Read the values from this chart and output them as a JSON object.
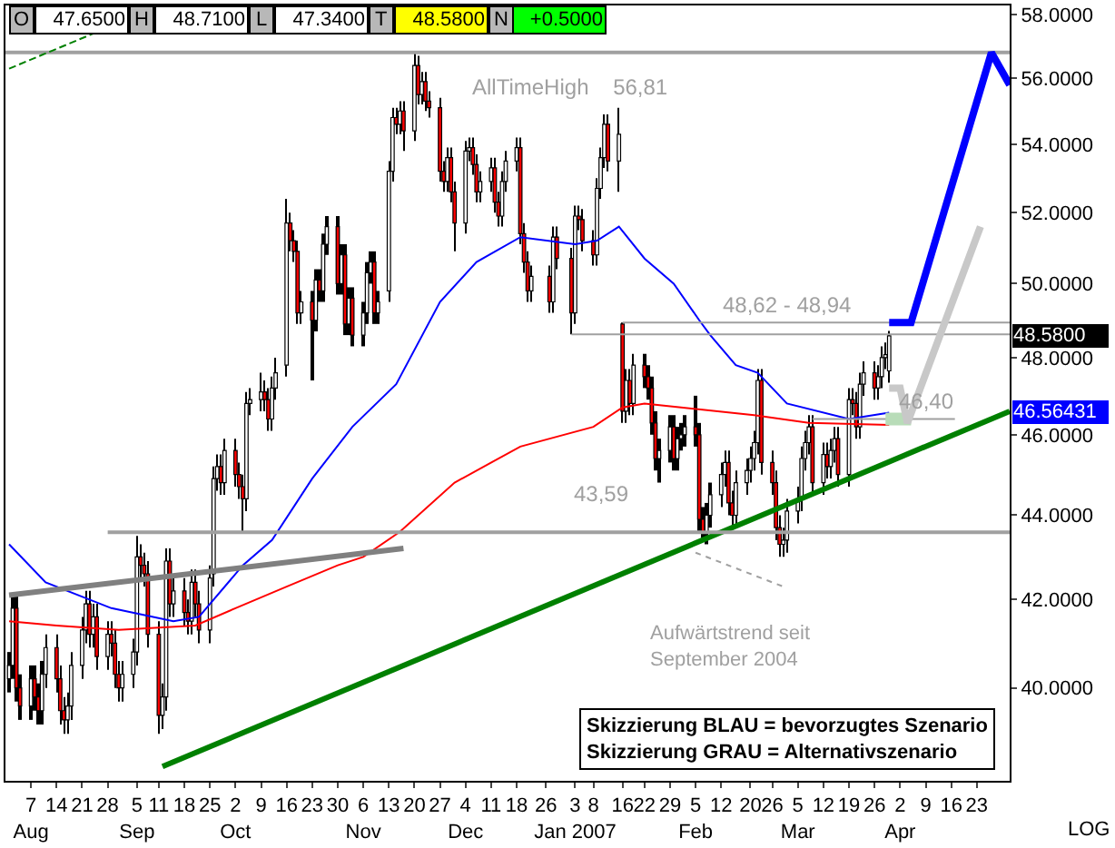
{
  "chart_data": {
    "type": "candlestick",
    "log": true,
    "x": [
      "2006-08-01",
      "2006-08-02",
      "2006-08-03",
      "2006-08-04",
      "2006-08-07",
      "2006-08-08",
      "2006-08-09",
      "2006-08-10",
      "2006-08-11",
      "2006-08-14",
      "2006-08-15",
      "2006-08-16",
      "2006-08-17",
      "2006-08-18",
      "2006-08-21",
      "2006-08-22",
      "2006-08-23",
      "2006-08-24",
      "2006-08-25",
      "2006-08-28",
      "2006-08-29",
      "2006-08-30",
      "2006-08-31",
      "2006-09-01",
      "2006-09-04",
      "2006-09-05",
      "2006-09-06",
      "2006-09-07",
      "2006-09-08",
      "2006-09-11",
      "2006-09-12",
      "2006-09-13",
      "2006-09-14",
      "2006-09-15",
      "2006-09-18",
      "2006-09-19",
      "2006-09-20",
      "2006-09-21",
      "2006-09-22",
      "2006-09-25",
      "2006-09-26",
      "2006-09-27",
      "2006-09-28",
      "2006-09-29",
      "2006-10-02",
      "2006-10-03",
      "2006-10-04",
      "2006-10-05",
      "2006-10-06",
      "2006-10-09",
      "2006-10-10",
      "2006-10-11",
      "2006-10-12",
      "2006-10-13",
      "2006-10-16",
      "2006-10-17",
      "2006-10-18",
      "2006-10-19",
      "2006-10-20",
      "2006-10-23",
      "2006-10-24",
      "2006-10-25",
      "2006-10-26",
      "2006-10-27",
      "2006-10-30",
      "2006-10-31",
      "2006-11-01",
      "2006-11-02",
      "2006-11-03",
      "2006-11-06",
      "2006-11-07",
      "2006-11-08",
      "2006-11-09",
      "2006-11-10",
      "2006-11-13",
      "2006-11-14",
      "2006-11-15",
      "2006-11-16",
      "2006-11-17",
      "2006-11-20",
      "2006-11-21",
      "2006-11-22",
      "2006-11-23",
      "2006-11-24",
      "2006-11-27",
      "2006-11-28",
      "2006-11-29",
      "2006-11-30",
      "2006-12-01",
      "2006-12-04",
      "2006-12-05",
      "2006-12-06",
      "2006-12-07",
      "2006-12-08",
      "2006-12-11",
      "2006-12-12",
      "2006-12-13",
      "2006-12-14",
      "2006-12-15",
      "2006-12-18",
      "2006-12-19",
      "2006-12-20",
      "2006-12-21",
      "2006-12-22",
      "2006-12-27",
      "2006-12-28",
      "2006-12-29",
      "2007-01-02",
      "2007-01-03",
      "2007-01-04",
      "2007-01-05",
      "2007-01-08",
      "2007-01-09",
      "2007-01-10",
      "2007-01-11",
      "2007-01-12",
      "2007-01-15",
      "2007-01-16",
      "2007-01-17",
      "2007-01-18",
      "2007-01-19",
      "2007-01-22",
      "2007-01-23",
      "2007-01-24",
      "2007-01-25",
      "2007-01-26",
      "2007-01-29",
      "2007-01-30",
      "2007-01-31",
      "2007-02-01",
      "2007-02-02",
      "2007-02-05",
      "2007-02-06",
      "2007-02-07",
      "2007-02-08",
      "2007-02-09",
      "2007-02-12",
      "2007-02-13",
      "2007-02-14",
      "2007-02-15",
      "2007-02-16",
      "2007-02-19",
      "2007-02-20",
      "2007-02-21",
      "2007-02-22",
      "2007-02-23",
      "2007-02-26",
      "2007-02-27",
      "2007-02-28",
      "2007-03-01",
      "2007-03-02",
      "2007-03-05",
      "2007-03-06",
      "2007-03-07",
      "2007-03-08",
      "2007-03-09",
      "2007-03-12",
      "2007-03-13",
      "2007-03-14",
      "2007-03-15",
      "2007-03-16",
      "2007-03-19",
      "2007-03-20",
      "2007-03-21",
      "2007-03-22",
      "2007-03-23",
      "2007-03-26",
      "2007-03-27",
      "2007-03-28",
      "2007-03-29",
      "2007-03-30"
    ],
    "ohlc": [
      [
        40.2,
        40.8,
        39.9,
        40.5
      ],
      [
        40.5,
        42.1,
        40.2,
        41.8
      ],
      [
        41.8,
        42.1,
        39.7,
        40.0
      ],
      [
        40.0,
        40.3,
        39.3,
        39.6
      ],
      [
        39.6,
        40.5,
        39.3,
        40.2
      ],
      [
        40.2,
        40.5,
        39.5,
        39.8
      ],
      [
        39.8,
        40.1,
        39.2,
        39.5
      ],
      [
        39.5,
        40.6,
        39.2,
        40.3
      ],
      [
        40.3,
        41.2,
        40.0,
        40.9
      ],
      [
        40.9,
        41.2,
        39.9,
        40.2
      ],
      [
        40.2,
        40.5,
        39.2,
        39.5
      ],
      [
        39.5,
        39.8,
        39.0,
        39.3
      ],
      [
        39.3,
        39.9,
        39.0,
        39.6
      ],
      [
        39.6,
        40.8,
        39.3,
        40.5
      ],
      [
        40.5,
        41.6,
        40.2,
        41.3
      ],
      [
        41.3,
        42.2,
        41.0,
        41.9
      ],
      [
        41.9,
        42.2,
        40.9,
        41.2
      ],
      [
        41.2,
        41.9,
        40.9,
        41.6
      ],
      [
        41.6,
        41.9,
        40.4,
        40.7
      ],
      [
        40.7,
        41.5,
        40.4,
        41.2
      ],
      [
        41.2,
        41.5,
        40.7,
        41.0
      ],
      [
        41.0,
        41.3,
        40.0,
        40.3
      ],
      [
        40.3,
        40.6,
        39.7,
        40.0
      ],
      [
        40.0,
        40.6,
        39.7,
        40.3
      ],
      [
        40.3,
        41.1,
        40.0,
        40.8
      ],
      [
        40.8,
        43.5,
        40.5,
        43.0
      ],
      [
        43.0,
        43.3,
        42.5,
        42.8
      ],
      [
        42.8,
        43.1,
        42.3,
        42.6
      ],
      [
        42.6,
        42.9,
        40.9,
        41.2
      ],
      [
        41.2,
        41.5,
        39.0,
        39.4
      ],
      [
        39.4,
        40.1,
        39.1,
        39.8
      ],
      [
        39.8,
        43.2,
        39.5,
        42.9
      ],
      [
        42.9,
        43.2,
        41.6,
        41.9
      ],
      [
        41.9,
        42.5,
        41.6,
        42.2
      ],
      [
        42.2,
        42.5,
        41.4,
        41.7
      ],
      [
        41.7,
        42.0,
        41.2,
        41.5
      ],
      [
        41.5,
        42.7,
        41.2,
        42.4
      ],
      [
        42.4,
        42.7,
        41.6,
        41.9
      ],
      [
        41.9,
        42.2,
        41.0,
        41.3
      ],
      [
        41.3,
        42.8,
        41.0,
        42.5
      ],
      [
        42.6,
        45.2,
        42.3,
        44.9
      ],
      [
        44.9,
        45.5,
        44.6,
        45.2
      ],
      [
        45.2,
        45.5,
        44.5,
        44.8
      ],
      [
        44.8,
        45.9,
        44.5,
        45.6
      ],
      [
        45.6,
        45.9,
        44.7,
        45.0
      ],
      [
        45.0,
        45.3,
        44.4,
        44.7
      ],
      [
        44.7,
        45.0,
        43.6,
        44.4
      ],
      [
        44.4,
        47.1,
        44.1,
        46.8
      ],
      [
        46.8,
        47.2,
        46.5,
        46.9
      ],
      [
        46.9,
        47.6,
        46.6,
        47.1
      ],
      [
        47.1,
        47.4,
        46.6,
        46.9
      ],
      [
        46.9,
        47.2,
        46.1,
        46.4
      ],
      [
        46.4,
        47.5,
        46.1,
        47.2
      ],
      [
        47.2,
        48.0,
        46.9,
        47.6
      ],
      [
        47.8,
        52.4,
        47.5,
        51.7
      ],
      [
        51.7,
        52.0,
        50.9,
        51.2
      ],
      [
        51.2,
        51.5,
        50.6,
        50.9
      ],
      [
        50.9,
        51.2,
        48.9,
        49.2
      ],
      [
        49.2,
        49.8,
        48.9,
        49.5
      ],
      [
        49.5,
        49.8,
        47.4,
        49.0
      ],
      [
        49.0,
        50.4,
        48.7,
        50.1
      ],
      [
        50.1,
        50.4,
        49.5,
        49.8
      ],
      [
        49.8,
        51.4,
        49.5,
        51.1
      ],
      [
        51.1,
        51.9,
        50.8,
        51.6
      ],
      [
        51.6,
        51.9,
        49.7,
        50.0
      ],
      [
        50.0,
        51.1,
        49.7,
        50.8
      ],
      [
        50.8,
        51.1,
        48.6,
        48.9
      ],
      [
        48.9,
        49.9,
        48.6,
        49.6
      ],
      [
        49.6,
        49.9,
        48.3,
        48.6
      ],
      [
        48.6,
        49.5,
        48.3,
        49.2
      ],
      [
        49.2,
        50.6,
        48.9,
        50.3
      ],
      [
        50.3,
        50.9,
        50.0,
        50.6
      ],
      [
        50.6,
        50.9,
        48.9,
        49.2
      ],
      [
        49.2,
        49.8,
        48.9,
        49.5
      ],
      [
        49.8,
        53.5,
        49.5,
        53.2
      ],
      [
        53.2,
        55.1,
        52.9,
        54.8
      ],
      [
        54.8,
        55.1,
        54.3,
        54.6
      ],
      [
        54.6,
        55.3,
        54.3,
        55.0
      ],
      [
        55.0,
        55.3,
        53.8,
        54.4
      ],
      [
        54.4,
        56.81,
        54.1,
        56.4
      ],
      [
        56.4,
        56.7,
        55.2,
        55.5
      ],
      [
        55.5,
        56.2,
        55.2,
        55.9
      ],
      [
        55.9,
        56.2,
        55.0,
        55.3
      ],
      [
        55.3,
        55.6,
        54.8,
        55.1
      ],
      [
        55.1,
        55.4,
        52.9,
        53.2
      ],
      [
        53.2,
        53.5,
        52.6,
        52.9
      ],
      [
        52.9,
        53.9,
        52.6,
        53.6
      ],
      [
        53.6,
        53.9,
        52.3,
        52.6
      ],
      [
        52.6,
        52.9,
        50.9,
        51.7
      ],
      [
        51.7,
        54.1,
        51.4,
        53.8
      ],
      [
        53.8,
        54.2,
        53.5,
        53.9
      ],
      [
        53.9,
        54.2,
        53.1,
        53.4
      ],
      [
        53.4,
        53.7,
        52.3,
        52.6
      ],
      [
        52.6,
        53.2,
        52.3,
        52.9
      ],
      [
        52.9,
        53.6,
        52.6,
        53.3
      ],
      [
        53.3,
        53.6,
        52.0,
        52.3
      ],
      [
        52.3,
        52.6,
        51.6,
        51.9
      ],
      [
        51.9,
        53.2,
        51.6,
        52.9
      ],
      [
        52.9,
        53.8,
        52.6,
        53.5
      ],
      [
        53.5,
        54.2,
        53.2,
        53.9
      ],
      [
        53.9,
        54.2,
        51.1,
        51.4
      ],
      [
        51.4,
        51.7,
        50.3,
        50.6
      ],
      [
        50.6,
        50.9,
        49.5,
        49.8
      ],
      [
        49.8,
        50.5,
        49.5,
        50.2
      ],
      [
        50.2,
        50.5,
        49.2,
        49.5
      ],
      [
        49.5,
        51.6,
        49.2,
        51.3
      ],
      [
        51.3,
        51.6,
        50.4,
        50.7
      ],
      [
        50.7,
        51.0,
        48.62,
        49.2
      ],
      [
        49.2,
        52.2,
        48.9,
        51.9
      ],
      [
        51.9,
        52.2,
        51.5,
        51.8
      ],
      [
        51.8,
        52.1,
        50.9,
        51.2
      ],
      [
        51.2,
        51.5,
        50.5,
        50.8
      ],
      [
        50.8,
        53.0,
        50.5,
        52.7
      ],
      [
        52.7,
        53.9,
        52.4,
        53.6
      ],
      [
        53.6,
        54.9,
        53.3,
        54.6
      ],
      [
        54.6,
        54.9,
        53.2,
        53.5
      ],
      [
        53.5,
        55.1,
        52.6,
        54.3
      ],
      [
        48.9,
        48.94,
        46.3,
        46.6
      ],
      [
        46.6,
        47.7,
        46.3,
        47.4
      ],
      [
        47.4,
        47.7,
        46.5,
        46.8
      ],
      [
        46.8,
        48.1,
        46.5,
        47.8
      ],
      [
        47.8,
        48.1,
        47.2,
        47.5
      ],
      [
        47.5,
        47.8,
        46.9,
        47.2
      ],
      [
        47.2,
        47.5,
        46.0,
        46.3
      ],
      [
        46.3,
        46.6,
        45.1,
        45.4
      ],
      [
        45.4,
        45.9,
        44.8,
        45.6
      ],
      [
        45.6,
        46.5,
        45.3,
        46.2
      ],
      [
        46.2,
        46.5,
        45.1,
        45.4
      ],
      [
        45.4,
        46.2,
        45.1,
        45.9
      ],
      [
        45.9,
        46.3,
        45.6,
        46.0
      ],
      [
        46.0,
        46.5,
        45.7,
        46.2
      ],
      [
        46.2,
        47.0,
        45.7,
        46.0
      ],
      [
        46.0,
        46.3,
        43.6,
        43.9
      ],
      [
        43.9,
        44.2,
        43.45,
        43.6
      ],
      [
        43.6,
        44.3,
        43.3,
        44.0
      ],
      [
        44.0,
        44.8,
        43.7,
        44.5
      ],
      [
        44.5,
        45.3,
        44.2,
        45.0
      ],
      [
        45.0,
        45.6,
        44.7,
        45.3
      ],
      [
        45.3,
        45.6,
        44.0,
        44.3
      ],
      [
        44.3,
        44.6,
        43.7,
        44.0
      ],
      [
        44.0,
        45.1,
        43.7,
        44.8
      ],
      [
        44.8,
        45.4,
        44.5,
        45.1
      ],
      [
        45.1,
        45.7,
        44.8,
        45.4
      ],
      [
        45.4,
        46.1,
        45.1,
        45.8
      ],
      [
        45.8,
        47.7,
        45.5,
        47.4
      ],
      [
        47.4,
        47.7,
        45.0,
        45.3
      ],
      [
        45.3,
        45.6,
        44.5,
        44.8
      ],
      [
        44.8,
        45.1,
        43.4,
        43.7
      ],
      [
        43.7,
        44.0,
        43.0,
        43.3
      ],
      [
        43.3,
        43.7,
        43.0,
        43.4
      ],
      [
        43.4,
        44.4,
        43.1,
        44.1
      ],
      [
        44.1,
        44.7,
        43.8,
        44.4
      ],
      [
        44.4,
        45.7,
        44.1,
        45.4
      ],
      [
        45.4,
        46.1,
        45.1,
        45.8
      ],
      [
        45.8,
        46.5,
        45.5,
        46.2
      ],
      [
        46.2,
        46.5,
        44.5,
        44.8
      ],
      [
        44.8,
        45.8,
        44.5,
        45.5
      ],
      [
        45.5,
        45.8,
        44.9,
        45.2
      ],
      [
        45.2,
        45.9,
        44.9,
        45.6
      ],
      [
        45.6,
        46.2,
        45.3,
        45.9
      ],
      [
        45.9,
        46.2,
        44.7,
        45.0
      ],
      [
        45.0,
        47.2,
        44.7,
        46.9
      ],
      [
        46.9,
        47.2,
        46.5,
        46.8
      ],
      [
        46.8,
        47.1,
        45.9,
        46.2
      ],
      [
        46.2,
        47.6,
        45.9,
        47.3
      ],
      [
        47.3,
        47.9,
        47.0,
        47.6
      ],
      [
        47.6,
        47.9,
        46.9,
        47.2
      ],
      [
        47.2,
        47.8,
        46.9,
        47.5
      ],
      [
        47.5,
        48.3,
        47.2,
        48.0
      ],
      [
        48.0,
        48.4,
        47.7,
        48.08
      ],
      [
        47.65,
        48.71,
        47.34,
        48.58
      ]
    ],
    "series": [
      {
        "type": "line",
        "color": "#0000ff",
        "x": [
          "2006-08-01",
          "2006-08-11",
          "2006-08-29",
          "2006-09-15",
          "2006-09-22",
          "2006-10-04",
          "2006-10-12",
          "2006-10-23",
          "2006-11-03",
          "2006-11-15",
          "2006-11-27",
          "2006-12-07",
          "2006-12-19",
          "2007-01-03",
          "2007-01-09",
          "2007-01-15",
          "2007-01-22",
          "2007-01-30",
          "2007-02-06",
          "2007-02-09",
          "2007-02-16",
          "2007-02-22",
          "2007-03-02",
          "2007-03-19",
          "2007-03-30"
        ],
        "values": [
          43.3,
          42.4,
          41.8,
          41.5,
          41.6,
          42.8,
          43.4,
          44.9,
          46.2,
          47.3,
          49.5,
          50.6,
          51.3,
          51.1,
          51.2,
          51.6,
          50.7,
          50.0,
          49.0,
          48.6,
          47.8,
          47.6,
          46.8,
          46.4,
          46.56431
        ]
      },
      {
        "type": "line",
        "color": "#ff0000",
        "x": [
          "2006-08-01",
          "2006-08-14",
          "2006-08-31",
          "2006-09-21",
          "2006-10-02",
          "2006-10-16",
          "2006-10-30",
          "2006-11-06",
          "2006-11-16",
          "2006-12-01",
          "2006-12-19",
          "2007-01-08",
          "2007-01-16",
          "2007-01-22",
          "2007-02-01",
          "2007-02-21",
          "2007-03-08",
          "2007-03-30"
        ],
        "values": [
          41.5,
          41.4,
          41.3,
          41.4,
          41.8,
          42.3,
          42.8,
          43.0,
          43.6,
          44.8,
          45.7,
          46.2,
          46.7,
          46.8,
          46.7,
          46.5,
          46.3,
          46.25
        ]
      },
      {
        "type": "line",
        "color": "#008000",
        "x": [
          "2006-09-12",
          "2007-05-02"
        ],
        "values": [
          38.3,
          46.6
        ]
      },
      {
        "type": "line",
        "color": "#a0a0a0",
        "x": [
          "2006-07-31",
          "2007-05-02"
        ],
        "values": [
          56.81,
          56.81
        ]
      },
      {
        "type": "line",
        "color": "#008000",
        "line_style": "dashed",
        "x": [
          "2006-08-01",
          "2006-08-24"
        ],
        "values": [
          56.3,
          57.4
        ]
      },
      {
        "type": "line",
        "color": "#808080",
        "x": [
          "2006-08-01",
          "2006-11-17"
        ],
        "values": [
          42.1,
          43.2
        ]
      },
      {
        "type": "line",
        "color": "#a0a0a0",
        "line_style": "dotted",
        "x": [
          "2007-02-05",
          "2007-03-01"
        ],
        "values": [
          43.1,
          42.3
        ]
      },
      {
        "type": "line",
        "color": "#a0a0a0",
        "x": [
          "2006-08-28",
          "2007-05-02"
        ],
        "values": [
          43.59,
          43.59
        ]
      },
      {
        "type": "line",
        "color": "#a0a0a0",
        "x": [
          "2007-01-02",
          "2007-05-02"
        ],
        "values": [
          48.62,
          48.62
        ]
      },
      {
        "type": "line",
        "color": "#a0a0a0",
        "x": [
          "2007-01-16",
          "2007-05-02"
        ],
        "values": [
          48.94,
          48.94
        ]
      },
      {
        "type": "line",
        "color": "#a0a0a0",
        "x": [
          "2007-03-09",
          "2007-04-17"
        ],
        "values": [
          46.4,
          46.4
        ]
      },
      {
        "type": "line",
        "color": "#b8dcb8",
        "x": [
          "2007-03-29",
          "2007-04-05"
        ],
        "values": [
          46.4,
          46.4
        ]
      },
      {
        "type": "line",
        "color": "#0000ff",
        "x": [
          "2007-03-30",
          "2007-04-05",
          "2007-04-27",
          "2007-05-02"
        ],
        "values": [
          48.94,
          48.94,
          56.8,
          55.8
        ]
      },
      {
        "type": "line",
        "color": "#c8c8c8",
        "x": [
          "2007-03-30",
          "2007-04-02",
          "2007-04-04",
          "2007-04-24"
        ],
        "values": [
          47.2,
          47.2,
          46.3,
          51.6
        ]
      }
    ],
    "xlim": [
      "2006-07-31",
      "2007-05-02"
    ],
    "xticks": [
      {
        "value": "2006-08-07",
        "label": "7\nAug"
      },
      {
        "value": "2006-08-14",
        "label": "14"
      },
      {
        "value": "2006-08-21",
        "label": "21"
      },
      {
        "value": "2006-08-28",
        "label": "28"
      },
      {
        "value": "2006-09-05",
        "label": "5\nSep"
      },
      {
        "value": "2006-09-11",
        "label": "11"
      },
      {
        "value": "2006-09-18",
        "label": "18"
      },
      {
        "value": "2006-09-25",
        "label": "25"
      },
      {
        "value": "2006-10-02",
        "label": "2\nOct"
      },
      {
        "value": "2006-10-09",
        "label": "9"
      },
      {
        "value": "2006-10-16",
        "label": "16"
      },
      {
        "value": "2006-10-23",
        "label": "23"
      },
      {
        "value": "2006-10-30",
        "label": "30"
      },
      {
        "value": "2006-11-06",
        "label": "6\nNov"
      },
      {
        "value": "2006-11-13",
        "label": "13"
      },
      {
        "value": "2006-11-20",
        "label": "20"
      },
      {
        "value": "2006-11-27",
        "label": "27"
      },
      {
        "value": "2006-12-04",
        "label": "4\nDec"
      },
      {
        "value": "2006-12-11",
        "label": "11"
      },
      {
        "value": "2006-12-18",
        "label": "18"
      },
      {
        "value": "2006-12-26",
        "label": "26"
      },
      {
        "value": "2007-01-03",
        "label": "3\nJan 2007"
      },
      {
        "value": "2007-01-08",
        "label": "8"
      },
      {
        "value": "2007-01-16",
        "label": "16"
      },
      {
        "value": "2007-01-22",
        "label": "22"
      },
      {
        "value": "2007-01-29",
        "label": "29"
      },
      {
        "value": "2007-02-05",
        "label": "5\nFeb"
      },
      {
        "value": "2007-02-12",
        "label": "12"
      },
      {
        "value": "2007-02-20",
        "label": "20"
      },
      {
        "value": "2007-02-26",
        "label": "26"
      },
      {
        "value": "2007-03-05",
        "label": "5\nMar"
      },
      {
        "value": "2007-03-12",
        "label": "12"
      },
      {
        "value": "2007-03-19",
        "label": "19"
      },
      {
        "value": "2007-03-26",
        "label": "26"
      },
      {
        "value": "2007-04-02",
        "label": "2\nApr"
      },
      {
        "value": "2007-04-09",
        "label": "9"
      },
      {
        "value": "2007-04-16",
        "label": "16"
      },
      {
        "value": "2007-04-23",
        "label": "23"
      }
    ],
    "ylim": [
      38.0,
      58.3
    ],
    "yticks": [
      {
        "value": 40,
        "label": "40.0000"
      },
      {
        "value": 42,
        "label": "42.0000"
      },
      {
        "value": 44,
        "label": "44.0000"
      },
      {
        "value": 46,
        "label": "46.0000"
      },
      {
        "value": 48,
        "label": "48.0000"
      },
      {
        "value": 50,
        "label": "50.0000"
      },
      {
        "value": 52,
        "label": "52.0000"
      },
      {
        "value": 54,
        "label": "54.0000"
      },
      {
        "value": 56,
        "label": "56.0000"
      },
      {
        "value": 58,
        "label": "58.0000"
      }
    ],
    "annotations": [
      "O",
      "47.6500",
      "H",
      "48.7100",
      "L",
      "47.3400",
      "T",
      "48.5800",
      "N",
      "+0.5000",
      "Skizzierung BLAU = bevorzugtes Szenario\nSkizzierung GRAU = Alternativszenario",
      "Aufwärtstrend seit\nSeptember 2004",
      "LOG",
      "AllTimeHigh    56,81",
      {
        "text": "48,62 - 48,94",
        "x": "2007-03-02",
        "y": 48.94
      },
      {
        "text": "43,59",
        "x": "2007-01-10",
        "y": 43.59
      },
      {
        "text": "46,40",
        "x": "2007-04-09",
        "y": 46.4
      },
      "48.5800",
      "46.56431"
    ]
  }
}
